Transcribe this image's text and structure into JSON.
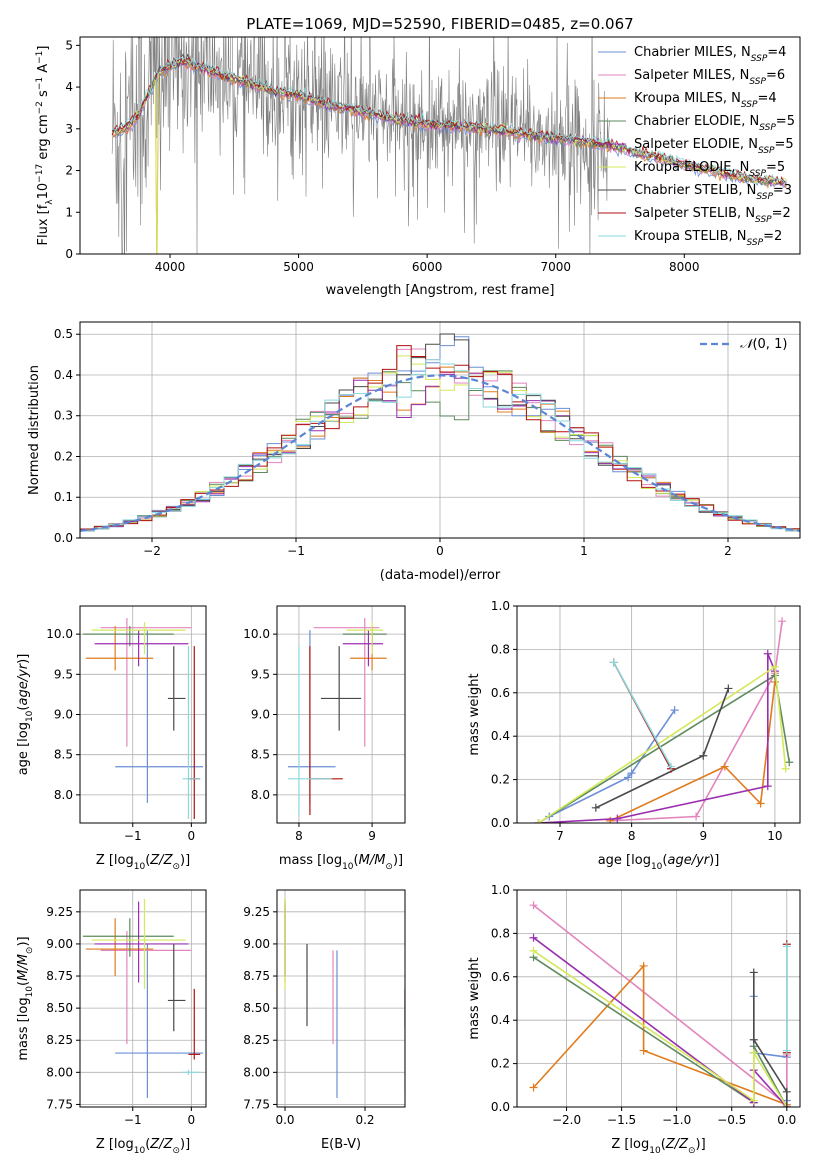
{
  "figure_title": "PLATE=1069, MJD=52590, FIBERID=0485, z=0.067",
  "colors": {
    "chabrier_miles": "#6b8fd6",
    "salpeter_miles": "#e285bd",
    "kroupa_miles": "#e07b1c",
    "chabrier_elodie": "#5e8a5e",
    "salpeter_elodie": "#9b2fb0",
    "kroupa_elodie": "#d3e85a",
    "chabrier_stelib": "#4a4a4a",
    "salpeter_stelib": "#b01010",
    "kroupa_stelib": "#89d9dd",
    "data": "#7f7f7f",
    "gauss": "#5b86d4"
  },
  "chart_data": [
    {
      "id": "spectrum",
      "type": "line",
      "xlabel": "wavelength [Angstrom, rest frame]",
      "ylabel": "Flux [f_λ 10^-17 erg cm^-2 s^-1 A^-1]",
      "xlim": [
        3300,
        8900
      ],
      "ylim": [
        0,
        5.2
      ],
      "xticks": [
        4000,
        5000,
        6000,
        7000,
        8000
      ],
      "yticks": [
        0,
        1,
        2,
        3,
        4,
        5
      ],
      "grid": false,
      "legend_position": "right",
      "data_range": [
        3550,
        7420
      ],
      "model_continuum": [
        [
          3550,
          2.9
        ],
        [
          3650,
          3.0
        ],
        [
          3750,
          3.3
        ],
        [
          3900,
          4.3
        ],
        [
          4000,
          4.5
        ],
        [
          4100,
          4.6
        ],
        [
          4300,
          4.4
        ],
        [
          4500,
          4.2
        ],
        [
          4800,
          3.9
        ],
        [
          5000,
          3.8
        ],
        [
          5200,
          3.6
        ],
        [
          5500,
          3.4
        ],
        [
          5800,
          3.2
        ],
        [
          6000,
          3.1
        ],
        [
          6300,
          3.05
        ],
        [
          6600,
          2.95
        ],
        [
          6900,
          2.8
        ],
        [
          7200,
          2.7
        ],
        [
          7420,
          2.6
        ],
        [
          7800,
          2.3
        ],
        [
          8200,
          2.0
        ],
        [
          8500,
          1.8
        ],
        [
          8800,
          1.7
        ]
      ],
      "series": [
        {
          "name": "Chabrier MILES, N_SSP=4",
          "color_key": "chabrier_miles"
        },
        {
          "name": "Salpeter MILES, N_SSP=6",
          "color_key": "salpeter_miles"
        },
        {
          "name": "Kroupa MILES, N_SSP=4",
          "color_key": "kroupa_miles"
        },
        {
          "name": "Chabrier ELODIE, N_SSP=5",
          "color_key": "chabrier_elodie"
        },
        {
          "name": "Salpeter ELODIE, N_SSP=5",
          "color_key": "salpeter_elodie"
        },
        {
          "name": "Kroupa ELODIE, N_SSP=5",
          "color_key": "kroupa_elodie"
        },
        {
          "name": "Chabrier STELIB, N_SSP=3",
          "color_key": "chabrier_stelib"
        },
        {
          "name": "Salpeter STELIB, N_SSP=2",
          "color_key": "salpeter_stelib"
        },
        {
          "name": "Kroupa STELIB, N_SSP=2",
          "color_key": "kroupa_stelib"
        }
      ]
    },
    {
      "id": "residual_hist",
      "type": "bar",
      "xlabel": "(data-model)/error",
      "ylabel": "Normed distribution",
      "xlim": [
        -2.5,
        2.5
      ],
      "ylim": [
        0,
        0.53
      ],
      "xticks": [
        -2,
        -1,
        0,
        1,
        2
      ],
      "yticks": [
        0.0,
        0.1,
        0.2,
        0.3,
        0.4,
        0.5
      ],
      "grid": true,
      "legend_position": "top-right",
      "legend": "N(0, 1)",
      "bin_width": 0.1,
      "gaussian": {
        "mean": 0,
        "sigma": 1
      }
    },
    {
      "id": "age_vs_Z",
      "type": "scatter",
      "xlabel": "Z [log10(Z/Z⊙)]",
      "ylabel": "age [log10(age/yr)]",
      "xlim": [
        -1.9,
        0.25
      ],
      "ylim": [
        7.65,
        10.35
      ],
      "xticks": [
        -1,
        0
      ],
      "yticks": [
        8.0,
        8.5,
        9.0,
        9.5,
        10.0
      ],
      "grid": true,
      "points": [
        {
          "s": "chabrier_miles",
          "x": -0.75,
          "y": 8.35,
          "ex": [
            -1.3,
            0.2
          ],
          "ey": [
            7.9,
            10.05
          ]
        },
        {
          "s": "salpeter_miles",
          "x": -1.1,
          "y": 10.08,
          "ex": [
            -1.55,
            0.0
          ],
          "ey": [
            8.6,
            10.2
          ]
        },
        {
          "s": "kroupa_miles",
          "x": -1.3,
          "y": 9.7,
          "ex": [
            -1.8,
            -0.65
          ],
          "ey": [
            9.55,
            10.1
          ]
        },
        {
          "s": "chabrier_elodie",
          "x": -1.05,
          "y": 10.0,
          "ex": [
            -1.85,
            -0.3
          ],
          "ey": [
            9.85,
            10.1
          ]
        },
        {
          "s": "salpeter_elodie",
          "x": -0.9,
          "y": 9.88,
          "ex": [
            -1.65,
            -0.05
          ],
          "ey": [
            9.6,
            10.05
          ]
        },
        {
          "s": "kroupa_elodie",
          "x": -0.8,
          "y": 10.05,
          "ex": [
            -1.7,
            -0.1
          ],
          "ey": [
            9.75,
            10.15
          ]
        },
        {
          "s": "chabrier_stelib",
          "x": -0.3,
          "y": 9.2,
          "ex": [
            -0.4,
            -0.1
          ],
          "ey": [
            8.8,
            9.85
          ]
        },
        {
          "s": "salpeter_stelib",
          "x": 0.05,
          "y": 8.2,
          "ex": [
            -0.05,
            0.15
          ],
          "ey": [
            7.7,
            9.85
          ]
        },
        {
          "s": "kroupa_stelib",
          "x": -0.05,
          "y": 8.2,
          "ex": [
            -0.15,
            0.15
          ],
          "ey": [
            7.7,
            9.85
          ]
        }
      ]
    },
    {
      "id": "age_vs_mass",
      "type": "scatter",
      "xlabel": "mass [log10(M/M⊙)]",
      "ylabel": "",
      "xlim": [
        7.7,
        9.45
      ],
      "ylim": [
        7.65,
        10.35
      ],
      "xticks": [
        8,
        9
      ],
      "yticks": [
        8.0,
        8.5,
        9.0,
        9.5,
        10.0
      ],
      "grid": true,
      "points": [
        {
          "s": "chabrier_miles",
          "x": 8.15,
          "y": 8.35,
          "ex": [
            7.85,
            8.5
          ],
          "ey": [
            7.9,
            10.05
          ]
        },
        {
          "s": "salpeter_miles",
          "x": 8.9,
          "y": 10.08,
          "ex": [
            8.2,
            9.1
          ],
          "ey": [
            8.6,
            10.2
          ]
        },
        {
          "s": "kroupa_miles",
          "x": 9.0,
          "y": 9.7,
          "ex": [
            8.7,
            9.2
          ],
          "ey": [
            9.55,
            10.1
          ]
        },
        {
          "s": "chabrier_elodie",
          "x": 9.0,
          "y": 10.0,
          "ex": [
            8.6,
            9.2
          ],
          "ey": [
            9.85,
            10.1
          ]
        },
        {
          "s": "salpeter_elodie",
          "x": 8.95,
          "y": 9.88,
          "ex": [
            8.6,
            9.15
          ],
          "ey": [
            9.6,
            10.05
          ]
        },
        {
          "s": "kroupa_elodie",
          "x": 9.0,
          "y": 10.05,
          "ex": [
            8.65,
            9.15
          ],
          "ey": [
            9.75,
            10.15
          ]
        },
        {
          "s": "chabrier_stelib",
          "x": 8.55,
          "y": 9.2,
          "ex": [
            8.3,
            8.85
          ],
          "ey": [
            8.8,
            9.85
          ]
        },
        {
          "s": "salpeter_stelib",
          "x": 8.15,
          "y": 8.2,
          "ex": [
            8.15,
            8.6
          ],
          "ey": [
            7.75,
            9.85
          ]
        },
        {
          "s": "kroupa_stelib",
          "x": 8.0,
          "y": 8.2,
          "ex": [
            7.85,
            8.45
          ],
          "ey": [
            7.75,
            9.85
          ]
        }
      ]
    },
    {
      "id": "weight_vs_age",
      "type": "line",
      "xlabel": "age [log10(age/yr)]",
      "ylabel": "mass weight",
      "xlim": [
        6.4,
        10.35
      ],
      "ylim": [
        0,
        1
      ],
      "xticks": [
        7,
        8,
        9,
        10
      ],
      "yticks": [
        0.0,
        0.2,
        0.4,
        0.6,
        0.8,
        1.0
      ],
      "grid": true,
      "series": [
        {
          "s": "chabrier_miles",
          "points": [
            [
              6.85,
              0.03
            ],
            [
              7.95,
              0.21
            ],
            [
              8.0,
              0.23
            ],
            [
              8.6,
              0.52
            ]
          ]
        },
        {
          "s": "salpeter_miles",
          "points": [
            [
              7.7,
              0.01
            ],
            [
              8.9,
              0.03
            ],
            [
              10.0,
              0.69
            ],
            [
              10.1,
              0.93
            ]
          ]
        },
        {
          "s": "kroupa_miles",
          "points": [
            [
              7.7,
              0.01
            ],
            [
              9.3,
              0.26
            ],
            [
              9.8,
              0.09
            ],
            [
              10.0,
              0.65
            ]
          ]
        },
        {
          "s": "chabrier_elodie",
          "points": [
            [
              6.7,
              0.0
            ],
            [
              10.0,
              0.68
            ],
            [
              10.2,
              0.28
            ]
          ]
        },
        {
          "s": "salpeter_elodie",
          "points": [
            [
              6.7,
              0.0
            ],
            [
              7.8,
              0.02
            ],
            [
              9.9,
              0.17
            ],
            [
              9.9,
              0.78
            ],
            [
              10.0,
              0.7
            ]
          ]
        },
        {
          "s": "kroupa_elodie",
          "points": [
            [
              6.7,
              0.0
            ],
            [
              10.0,
              0.72
            ],
            [
              10.15,
              0.25
            ]
          ]
        },
        {
          "s": "chabrier_stelib",
          "points": [
            [
              7.5,
              0.07
            ],
            [
              9.0,
              0.31
            ],
            [
              9.35,
              0.62
            ]
          ]
        },
        {
          "s": "salpeter_stelib",
          "points": [
            [
              7.75,
              0.74
            ],
            [
              8.55,
              0.25
            ]
          ]
        },
        {
          "s": "kroupa_stelib",
          "points": [
            [
              7.75,
              0.74
            ],
            [
              8.55,
              0.26
            ]
          ]
        }
      ]
    },
    {
      "id": "mass_vs_Z",
      "type": "scatter",
      "xlabel": "Z [log10(Z/Z⊙)]",
      "ylabel": "mass [log10(M/M⊙)]",
      "xlim": [
        -1.9,
        0.25
      ],
      "ylim": [
        7.73,
        9.42
      ],
      "xticks": [
        -1,
        0
      ],
      "yticks": [
        7.75,
        8.0,
        8.25,
        8.5,
        8.75,
        9.0,
        9.25
      ],
      "grid": true,
      "points": [
        {
          "s": "chabrier_miles",
          "x": -0.75,
          "y": 8.15,
          "ex": [
            -1.3,
            0.2
          ],
          "ey": [
            7.8,
            9.0
          ]
        },
        {
          "s": "salpeter_miles",
          "x": -1.1,
          "y": 8.95,
          "ex": [
            -1.55,
            0.0
          ],
          "ey": [
            8.22,
            9.1
          ]
        },
        {
          "s": "kroupa_miles",
          "x": -1.3,
          "y": 8.96,
          "ex": [
            -1.8,
            -0.65
          ],
          "ey": [
            8.75,
            9.2
          ]
        },
        {
          "s": "chabrier_elodie",
          "x": -1.05,
          "y": 9.06,
          "ex": [
            -1.85,
            -0.3
          ],
          "ey": [
            8.9,
            9.2
          ]
        },
        {
          "s": "salpeter_elodie",
          "x": -0.9,
          "y": 9.0,
          "ex": [
            -1.65,
            -0.05
          ],
          "ey": [
            8.7,
            9.33
          ]
        },
        {
          "s": "kroupa_elodie",
          "x": -0.8,
          "y": 9.03,
          "ex": [
            -1.7,
            -0.1
          ],
          "ey": [
            8.65,
            9.35
          ]
        },
        {
          "s": "chabrier_stelib",
          "x": -0.3,
          "y": 8.56,
          "ex": [
            -0.4,
            -0.1
          ],
          "ey": [
            8.32,
            9.0
          ]
        },
        {
          "s": "salpeter_stelib",
          "x": 0.05,
          "y": 8.14,
          "ex": [
            -0.05,
            0.15
          ],
          "ey": [
            8.1,
            8.65
          ]
        },
        {
          "s": "kroupa_stelib",
          "x": -0.05,
          "y": 8.0,
          "ex": [
            -0.15,
            0.15
          ],
          "ey": [
            7.98,
            8.02
          ]
        }
      ]
    },
    {
      "id": "mass_vs_ebv",
      "type": "scatter",
      "xlabel": "E(B-V)",
      "ylabel": "",
      "xlim": [
        -0.02,
        0.3
      ],
      "ylim": [
        7.73,
        9.42
      ],
      "xticks": [
        0.0,
        0.2
      ],
      "yticks": [
        7.75,
        8.0,
        8.25,
        8.5,
        8.75,
        9.0,
        9.25
      ],
      "grid": true,
      "points": [
        {
          "s": "chabrier_miles",
          "x": 0.13,
          "y": 8.35,
          "ey": [
            7.8,
            8.95
          ]
        },
        {
          "s": "salpeter_miles",
          "x": 0.12,
          "y": 8.6,
          "ey": [
            8.22,
            8.95
          ]
        },
        {
          "s": "kroupa_miles",
          "x": 0.0,
          "y": 9.0,
          "ey": [
            8.7,
            9.3
          ]
        },
        {
          "s": "chabrier_elodie",
          "x": 0.0,
          "y": 9.1,
          "ey": [
            8.75,
            9.35
          ]
        },
        {
          "s": "salpeter_elodie",
          "x": 0.0,
          "y": 9.0,
          "ey": [
            8.75,
            9.33
          ]
        },
        {
          "s": "kroupa_elodie",
          "x": 0.0,
          "y": 9.0,
          "ey": [
            8.65,
            9.35
          ]
        },
        {
          "s": "chabrier_stelib",
          "x": 0.055,
          "y": 8.7,
          "ey": [
            8.36,
            9.0
          ]
        },
        {
          "s": "salpeter_stelib",
          "x": 0.3,
          "y": 8.5,
          "ey": [
            8.35,
            8.65
          ]
        },
        {
          "s": "kroupa_stelib",
          "x": 0.3,
          "y": 8.2,
          "ey": [
            7.85,
            8.55
          ]
        }
      ]
    },
    {
      "id": "weight_vs_Z",
      "type": "line",
      "xlabel": "Z [log10(Z/Z⊙)]",
      "ylabel": "mass weight",
      "xlim": [
        -2.45,
        0.12
      ],
      "ylim": [
        0,
        1
      ],
      "xticks": [
        -2.0,
        -1.5,
        -1.0,
        -0.5,
        0.0
      ],
      "yticks": [
        0.0,
        0.2,
        0.4,
        0.6,
        0.8,
        1.0
      ],
      "grid": true,
      "series": [
        {
          "s": "chabrier_miles",
          "points": [
            [
              -0.3,
              0.51
            ],
            [
              -0.3,
              0.25
            ],
            [
              0.0,
              0.23
            ],
            [
              0.0,
              0.03
            ]
          ]
        },
        {
          "s": "salpeter_miles",
          "points": [
            [
              -2.3,
              0.93
            ],
            [
              0.0,
              0.01
            ],
            [
              0.0,
              0.24
            ]
          ]
        },
        {
          "s": "kroupa_miles",
          "points": [
            [
              -2.3,
              0.09
            ],
            [
              -1.3,
              0.65
            ],
            [
              -1.3,
              0.26
            ],
            [
              0.0,
              0.01
            ]
          ]
        },
        {
          "s": "chabrier_elodie",
          "points": [
            [
              -2.3,
              0.69
            ],
            [
              -0.3,
              0.02
            ],
            [
              -0.3,
              0.28
            ],
            [
              0.0,
              0.0
            ]
          ]
        },
        {
          "s": "salpeter_elodie",
          "points": [
            [
              -2.3,
              0.78
            ],
            [
              -0.3,
              0.02
            ],
            [
              -0.3,
              0.17
            ],
            [
              0.0,
              0.0
            ]
          ]
        },
        {
          "s": "kroupa_elodie",
          "points": [
            [
              -2.3,
              0.72
            ],
            [
              -0.3,
              0.03
            ],
            [
              -0.3,
              0.25
            ],
            [
              0.0,
              0.0
            ]
          ]
        },
        {
          "s": "chabrier_stelib",
          "points": [
            [
              -0.3,
              0.62
            ],
            [
              -0.3,
              0.31
            ],
            [
              0.0,
              0.07
            ],
            [
              0.0,
              0.0
            ]
          ]
        },
        {
          "s": "salpeter_stelib",
          "points": [
            [
              0.0,
              0.75
            ],
            [
              0.0,
              0.25
            ]
          ]
        },
        {
          "s": "kroupa_stelib",
          "points": [
            [
              0.0,
              0.74
            ],
            [
              0.0,
              0.26
            ]
          ]
        }
      ]
    }
  ]
}
